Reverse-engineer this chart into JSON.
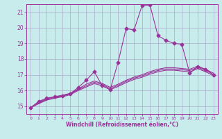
{
  "xlabel": "Windchill (Refroidissement éolien,°C)",
  "background_color": "#c8ecec",
  "grid_color": "#aaaacc",
  "line_color": "#993399",
  "xlim": [
    -0.5,
    23.5
  ],
  "ylim": [
    14.5,
    21.5
  ],
  "yticks": [
    15,
    16,
    17,
    18,
    19,
    20,
    21
  ],
  "xticks": [
    0,
    1,
    2,
    3,
    4,
    5,
    6,
    7,
    8,
    9,
    10,
    11,
    12,
    13,
    14,
    15,
    16,
    17,
    18,
    19,
    20,
    21,
    22,
    23
  ],
  "lines": [
    {
      "x": [
        0,
        1,
        2,
        3,
        4,
        5,
        6,
        7,
        8,
        9,
        10,
        11,
        12,
        13,
        14,
        15,
        16,
        17,
        18,
        19,
        20,
        21,
        22,
        23
      ],
      "y": [
        14.9,
        15.3,
        15.5,
        15.6,
        15.65,
        15.8,
        16.2,
        16.65,
        17.2,
        16.3,
        16.05,
        17.8,
        19.95,
        19.85,
        21.4,
        21.45,
        19.5,
        19.2,
        19.0,
        18.95,
        17.1,
        17.5,
        17.35,
        17.0
      ],
      "marker": "D",
      "marker_size": 2.5,
      "linewidth": 0.8
    },
    {
      "x": [
        0,
        1,
        2,
        3,
        4,
        5,
        6,
        7,
        8,
        9,
        10,
        11,
        12,
        13,
        14,
        15,
        16,
        17,
        18,
        19,
        20,
        21,
        22,
        23
      ],
      "y": [
        14.9,
        15.25,
        15.45,
        15.6,
        15.7,
        15.82,
        16.1,
        16.4,
        16.6,
        16.45,
        16.2,
        16.4,
        16.65,
        16.85,
        17.0,
        17.2,
        17.35,
        17.45,
        17.45,
        17.4,
        17.35,
        17.55,
        17.35,
        17.1
      ],
      "marker": null,
      "marker_size": 0,
      "linewidth": 0.8
    },
    {
      "x": [
        0,
        1,
        2,
        3,
        4,
        5,
        6,
        7,
        8,
        9,
        10,
        11,
        12,
        13,
        14,
        15,
        16,
        17,
        18,
        19,
        20,
        21,
        22,
        23
      ],
      "y": [
        14.9,
        15.2,
        15.42,
        15.55,
        15.65,
        15.78,
        16.05,
        16.3,
        16.52,
        16.38,
        16.12,
        16.32,
        16.58,
        16.78,
        16.92,
        17.12,
        17.27,
        17.37,
        17.37,
        17.32,
        17.27,
        17.47,
        17.27,
        17.02
      ],
      "marker": null,
      "marker_size": 0,
      "linewidth": 0.8
    },
    {
      "x": [
        0,
        1,
        2,
        3,
        4,
        5,
        6,
        7,
        8,
        9,
        10,
        11,
        12,
        13,
        14,
        15,
        16,
        17,
        18,
        19,
        20,
        21,
        22,
        23
      ],
      "y": [
        14.9,
        15.15,
        15.38,
        15.5,
        15.6,
        15.73,
        16.0,
        16.22,
        16.44,
        16.3,
        16.05,
        16.25,
        16.5,
        16.7,
        16.84,
        17.04,
        17.19,
        17.29,
        17.29,
        17.24,
        17.19,
        17.39,
        17.19,
        16.94
      ],
      "marker": null,
      "marker_size": 0,
      "linewidth": 0.8
    }
  ]
}
